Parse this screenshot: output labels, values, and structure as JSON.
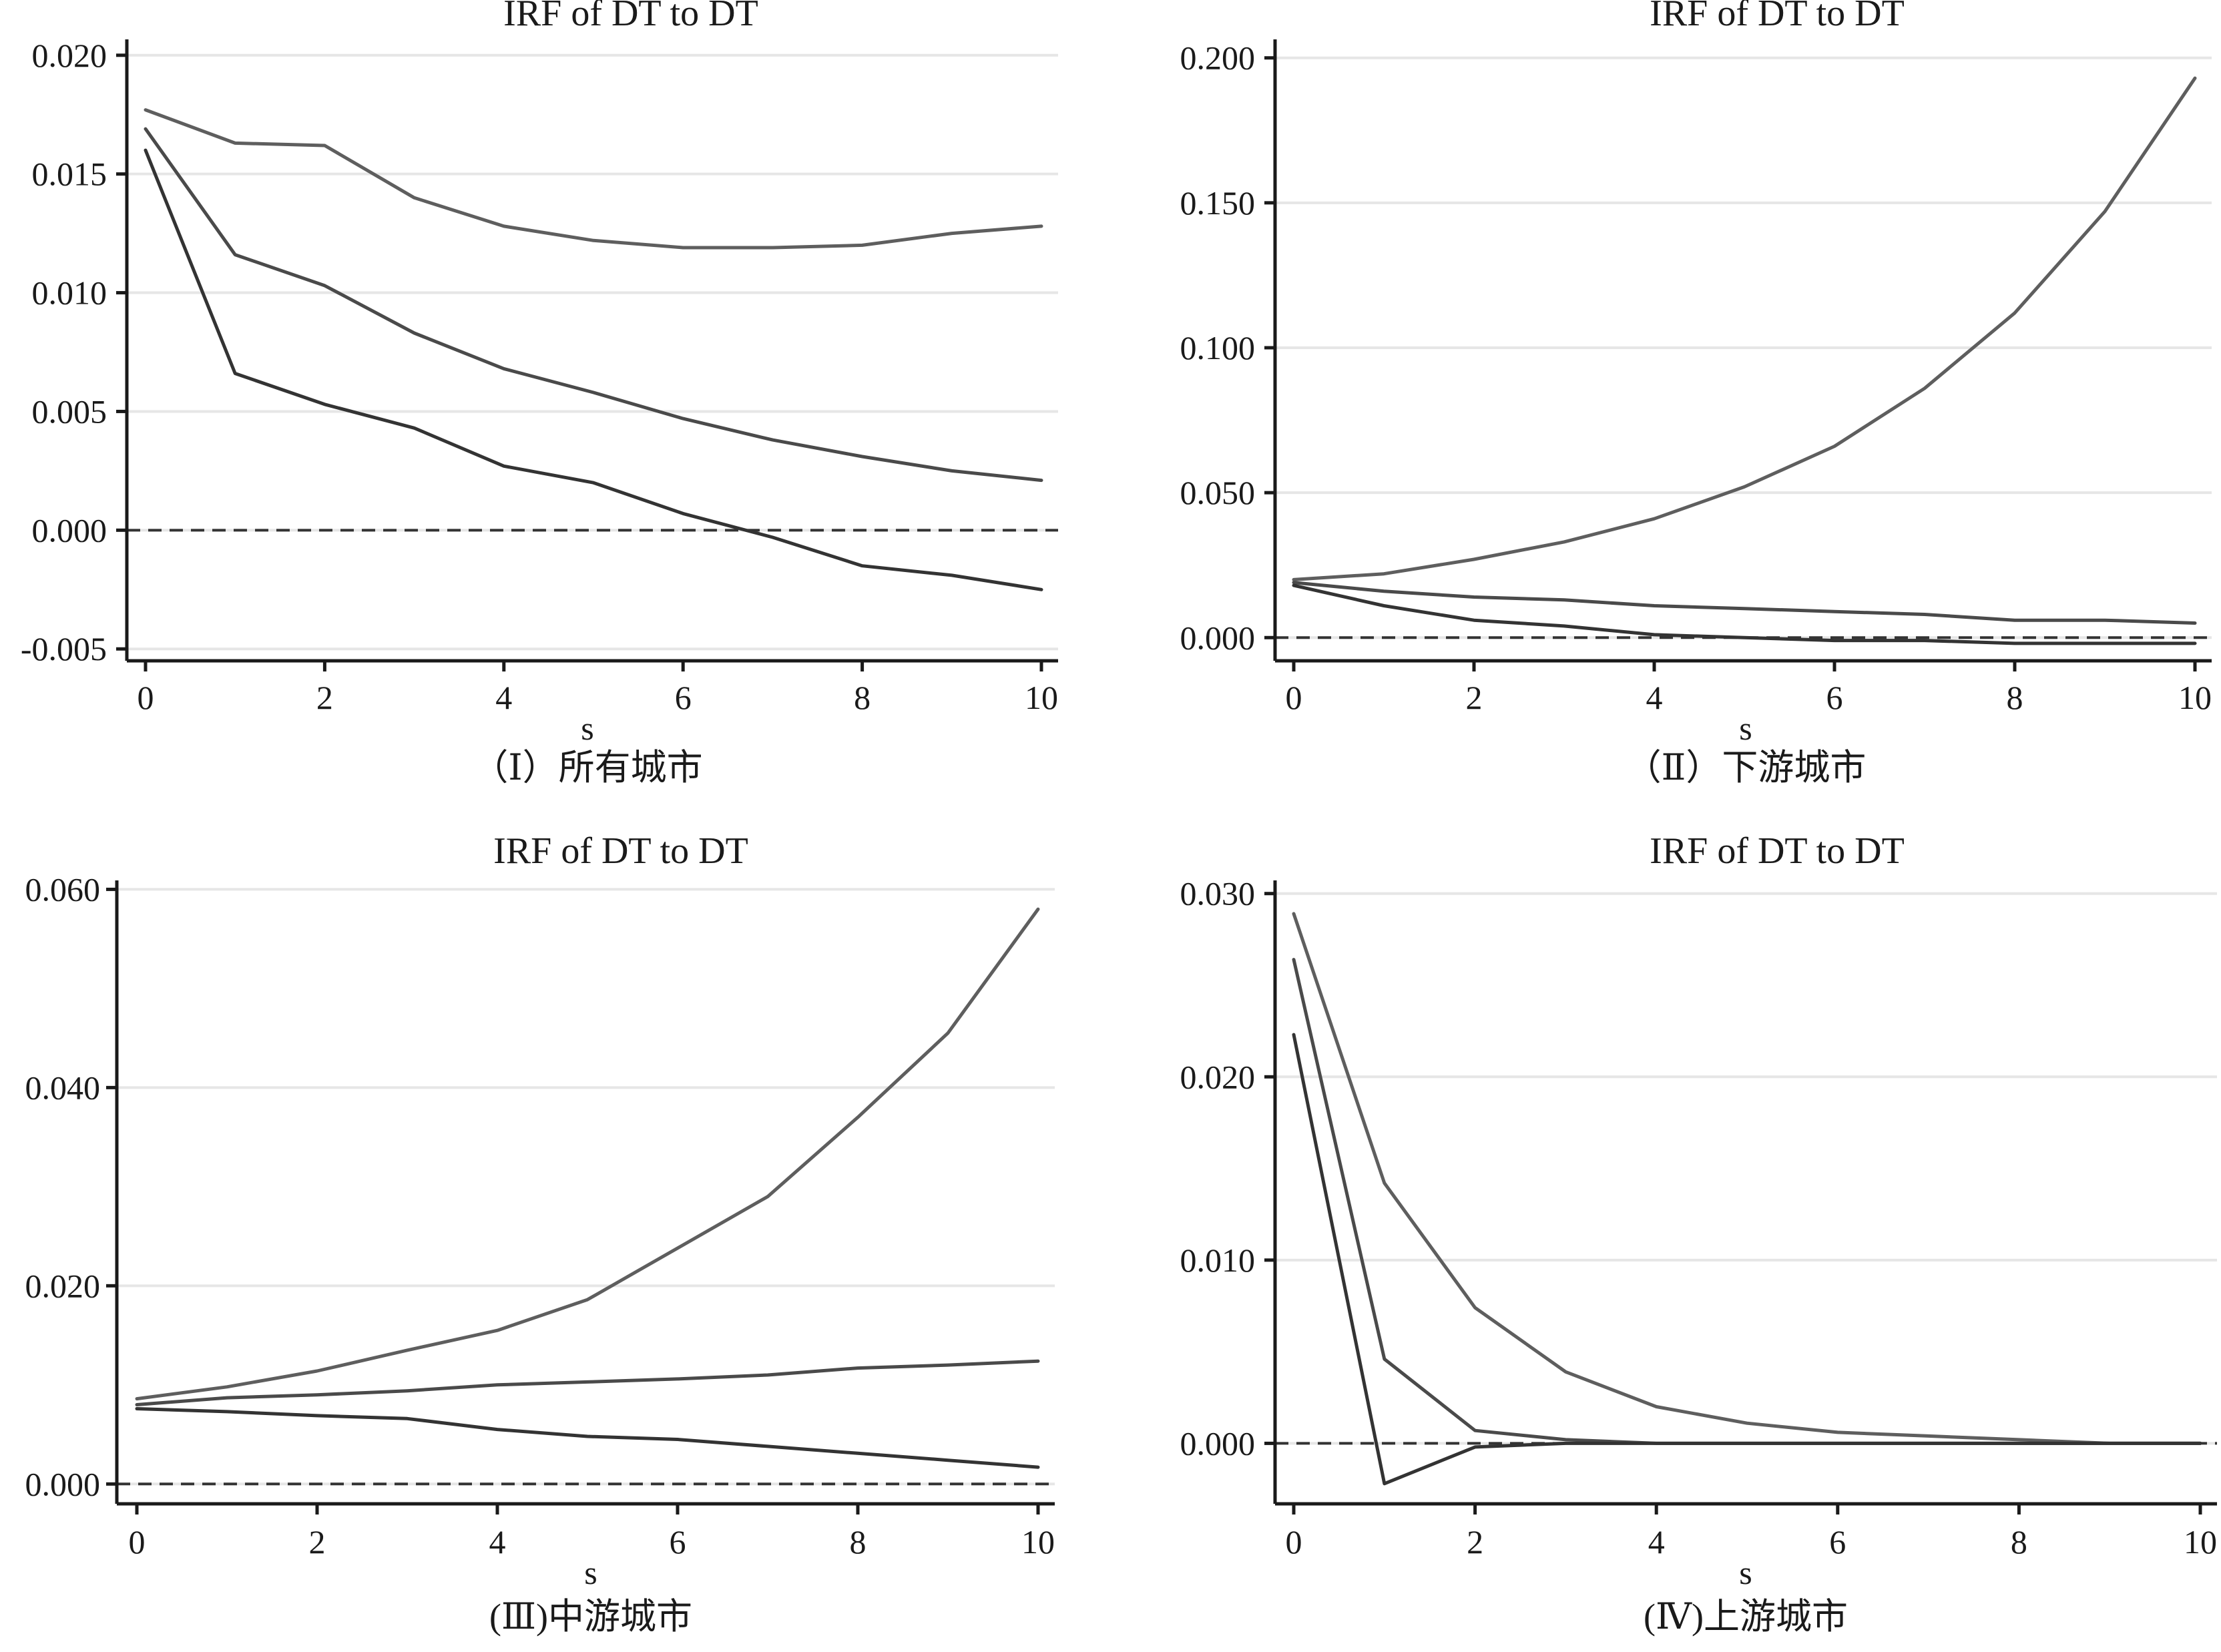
{
  "chart_data": [
    {
      "type": "line",
      "title": "IRF of DT to DT",
      "caption": "（Ⅰ）所有城市",
      "xlabel": "s",
      "ylabel": "",
      "x": [
        0,
        1,
        2,
        3,
        4,
        5,
        6,
        7,
        8,
        9,
        10
      ],
      "xticks": [
        0,
        2,
        4,
        6,
        8,
        10
      ],
      "xticklabels": [
        "0",
        "2",
        "4",
        "6",
        "8",
        "10"
      ],
      "ylim": [
        -0.0055,
        0.0205
      ],
      "yticks": [
        -0.005,
        0,
        0.005,
        0.01,
        0.015,
        0.02
      ],
      "yticklabels": [
        "-0.005",
        "0.000",
        "0.005",
        "0.010",
        "0.015",
        "0.020"
      ],
      "grid": "horizontal",
      "zero_line": "dashed",
      "series": [
        {
          "values": [
            0.0177,
            0.0163,
            0.0162,
            0.014,
            0.0128,
            0.0122,
            0.0119,
            0.0119,
            0.012,
            0.0125,
            0.0128
          ]
        },
        {
          "values": [
            0.0169,
            0.0116,
            0.0103,
            0.0083,
            0.0068,
            0.0058,
            0.0047,
            0.0038,
            0.0031,
            0.0025,
            0.0021
          ]
        },
        {
          "values": [
            0.016,
            0.0066,
            0.0053,
            0.0043,
            0.0027,
            0.002,
            0.0007,
            -0.0003,
            -0.0015,
            -0.0019,
            -0.0025
          ]
        }
      ]
    },
    {
      "type": "line",
      "title": "IRF of DT to DT",
      "caption": "（Ⅱ）下游城市",
      "xlabel": "s",
      "ylabel": "",
      "x": [
        0,
        1,
        2,
        3,
        4,
        5,
        6,
        7,
        8,
        9,
        10
      ],
      "xticks": [
        0,
        2,
        4,
        6,
        8,
        10
      ],
      "xticklabels": [
        "0",
        "2",
        "4",
        "6",
        "8",
        "10"
      ],
      "ylim": [
        -0.008,
        0.205
      ],
      "yticks": [
        0,
        0.05,
        0.1,
        0.15,
        0.2
      ],
      "yticklabels": [
        "0.000",
        "0.050",
        "0.100",
        "0.150",
        "0.200"
      ],
      "grid": "horizontal",
      "zero_line": "dashed",
      "series": [
        {
          "values": [
            0.02,
            0.022,
            0.027,
            0.033,
            0.041,
            0.052,
            0.066,
            0.086,
            0.112,
            0.147,
            0.193
          ]
        },
        {
          "values": [
            0.019,
            0.016,
            0.014,
            0.013,
            0.011,
            0.01,
            0.009,
            0.008,
            0.006,
            0.006,
            0.005
          ]
        },
        {
          "values": [
            0.018,
            0.011,
            0.006,
            0.004,
            0.001,
            0.0,
            -0.001,
            -0.001,
            -0.002,
            -0.002,
            -0.002
          ]
        }
      ]
    },
    {
      "type": "line",
      "title": "IRF of DT to DT",
      "caption": "(Ⅲ)中游城市",
      "xlabel": "s",
      "ylabel": "",
      "x": [
        0,
        1,
        2,
        3,
        4,
        5,
        6,
        7,
        8,
        9,
        10
      ],
      "xticks": [
        0,
        2,
        4,
        6,
        8,
        10
      ],
      "xticklabels": [
        "0",
        "2",
        "4",
        "6",
        "8",
        "10"
      ],
      "ylim": [
        -0.002,
        0.0605
      ],
      "yticks": [
        0,
        0.02,
        0.04,
        0.06
      ],
      "yticklabels": [
        "0.000",
        "0.020",
        "0.040",
        "0.060"
      ],
      "grid": "horizontal",
      "zero_line": "dashed",
      "series": [
        {
          "values": [
            0.0086,
            0.0098,
            0.0114,
            0.0135,
            0.0155,
            0.0186,
            0.0238,
            0.029,
            0.037,
            0.0455,
            0.058
          ]
        },
        {
          "values": [
            0.008,
            0.0087,
            0.009,
            0.0094,
            0.01,
            0.0103,
            0.0106,
            0.011,
            0.0117,
            0.012,
            0.0124
          ]
        },
        {
          "values": [
            0.0076,
            0.0073,
            0.0069,
            0.0066,
            0.0055,
            0.0048,
            0.0045,
            0.0038,
            0.0031,
            0.0024,
            0.0017
          ]
        }
      ]
    },
    {
      "type": "line",
      "title": "IRF of DT to DT",
      "caption": "(Ⅳ)上游城市",
      "xlabel": "s",
      "ylabel": "",
      "x": [
        0,
        1,
        2,
        3,
        4,
        5,
        6,
        7,
        8,
        9,
        10
      ],
      "xticks": [
        0,
        2,
        4,
        6,
        8,
        10
      ],
      "xticklabels": [
        "0",
        "2",
        "4",
        "6",
        "8",
        "10"
      ],
      "ylim": [
        -0.0033,
        0.0305
      ],
      "yticks": [
        0,
        0.01,
        0.02,
        0.03
      ],
      "yticklabels": [
        "0.000",
        "0.010",
        "0.020",
        "0.030"
      ],
      "grid": "horizontal",
      "zero_line": "dashed",
      "series": [
        {
          "values": [
            0.0289,
            0.0142,
            0.0074,
            0.0039,
            0.002,
            0.0011,
            0.0006,
            0.0004,
            0.0002,
            0.0,
            0.0
          ]
        },
        {
          "values": [
            0.0264,
            0.0046,
            0.0007,
            0.0002,
            0.0,
            0.0,
            0.0,
            0.0,
            0.0,
            0.0,
            0.0
          ]
        },
        {
          "values": [
            0.0223,
            -0.0022,
            -0.0002,
            0.0,
            0.0,
            0.0,
            0.0,
            0.0,
            0.0,
            0.0,
            0.0
          ]
        }
      ]
    }
  ],
  "colors": {
    "upper": "#5e5e5e",
    "middle": "#4a4a4a",
    "lower": "#333333",
    "axis": "#1a1a1a",
    "grid": "#e6e6e6",
    "zero": "#333333"
  }
}
